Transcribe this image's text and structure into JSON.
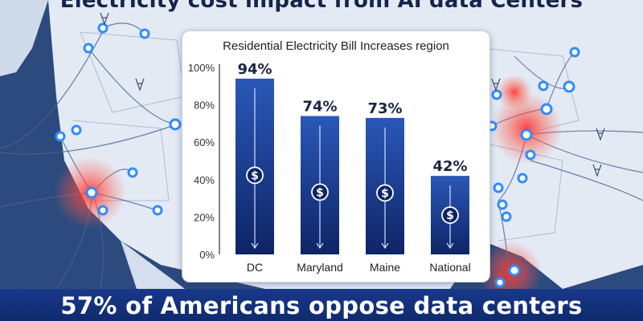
{
  "header": {
    "title": "Electricity cost impact from AI data Centers"
  },
  "banner": {
    "text": "57% of Americans oppose data centers"
  },
  "colors": {
    "bar_top": "#2a58b8",
    "bar_bottom": "#0e2466",
    "banner": "#14327a",
    "hotspot": "#ff2a2a"
  },
  "chart_data": {
    "type": "bar",
    "title": "Residential Electricity Bill Increases region",
    "categories": [
      "DC",
      "Maryland",
      "Maine",
      "National"
    ],
    "values": [
      94,
      74,
      73,
      42
    ],
    "data_labels": [
      "94%",
      "74%",
      "73%",
      "42%"
    ],
    "y_ticks": [
      0,
      20,
      40,
      60,
      80,
      100
    ],
    "y_tick_labels": [
      "0%",
      "20%",
      "40%",
      "60%",
      "80%",
      "100%"
    ],
    "ylim": [
      0,
      100
    ],
    "xlabel": "",
    "ylabel": "",
    "grid": false,
    "bar_icon": "dollar-circle-icon"
  }
}
